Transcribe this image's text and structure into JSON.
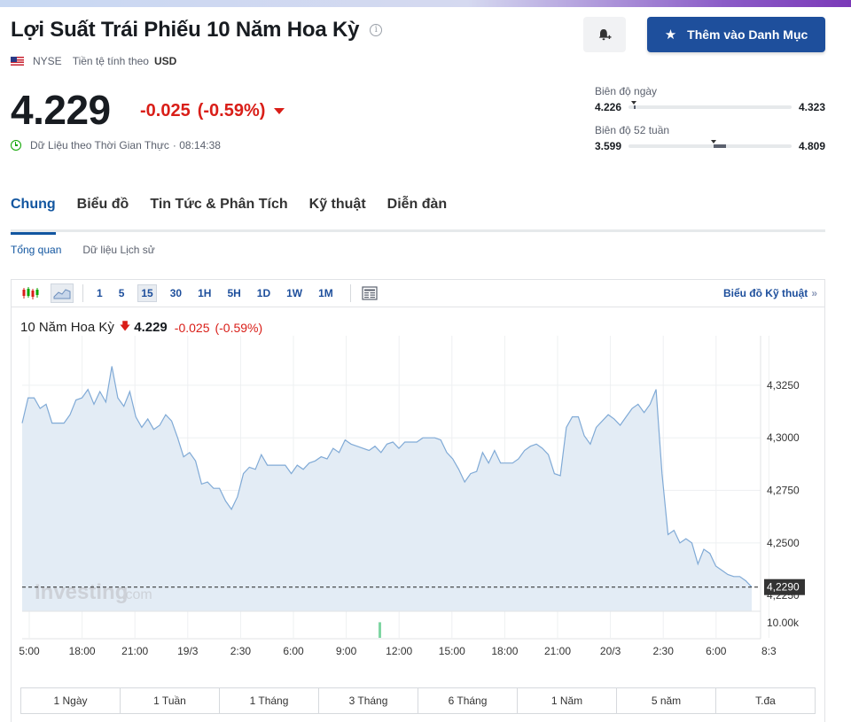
{
  "header": {
    "title": "Lợi Suất Trái Phiếu 10 Năm Hoa Kỳ",
    "exchange": "NYSE",
    "currency_label": "Tiền tệ tính theo",
    "currency": "USD",
    "watchlist_button": "Thêm vào Danh Mục"
  },
  "quote": {
    "price": "4.229",
    "change": "-0.025",
    "change_pct": "(-0.59%)",
    "realtime_label": "Dữ Liệu theo Thời Gian Thực",
    "time": "· 08:14:38"
  },
  "ranges": {
    "day": {
      "label": "Biên độ ngày",
      "low": "4.226",
      "high": "4.323",
      "current": 0.03
    },
    "week52": {
      "label": "Biên độ 52 tuần",
      "low": "3.599",
      "high": "4.809",
      "current": 0.52,
      "band": [
        0.52,
        0.6
      ]
    }
  },
  "tabs": [
    "Chung",
    "Biểu đồ",
    "Tin Tức & Phân Tích",
    "Kỹ thuật",
    "Diễn đàn"
  ],
  "subtabs": [
    "Tổng quan",
    "Dữ liệu Lịch sử"
  ],
  "toolbar": {
    "intervals": [
      "1",
      "5",
      "15",
      "30",
      "1H",
      "5H",
      "1D",
      "1W",
      "1M"
    ],
    "active_interval": "15",
    "tech_link": "Biểu đồ Kỹ thuật",
    "tech_chevron": "»"
  },
  "chart_legend": {
    "symbol": "10 Năm Hoa Kỳ",
    "arrow": "🡇",
    "value": "4.229",
    "change": "-0.025",
    "change_pct": "(-0.59%)"
  },
  "watermark": "Investing",
  "watermark_suffix": ".com",
  "chart_data": {
    "type": "area",
    "title": "",
    "xlabel": "",
    "ylabel": "",
    "ylim": [
      4.2175,
      4.3435
    ],
    "yticks": [
      "4,3250",
      "4,3000",
      "4,2750",
      "4,2500"
    ],
    "last_value_label": "4,2290",
    "hidden_tick_label": "4,2250",
    "volume_label": "10.00k",
    "xticks": [
      "5:00",
      "18:00",
      "21:00",
      "19/3",
      "2:30",
      "6:00",
      "9:00",
      "12:00",
      "15:00",
      "18:00",
      "21:00",
      "20/3",
      "2:30",
      "6:00",
      "8:3"
    ],
    "series": [
      {
        "values": [
          4.307,
          4.319,
          4.319,
          4.314,
          4.316,
          4.307,
          4.307,
          4.307,
          4.311,
          4.318,
          4.319,
          4.323,
          4.316,
          4.322,
          4.317,
          4.334,
          4.319,
          4.315,
          4.322,
          4.31,
          4.305,
          4.309,
          4.304,
          4.306,
          4.311,
          4.308,
          4.3,
          4.291,
          4.293,
          4.289,
          4.278,
          4.279,
          4.276,
          4.276,
          4.27,
          4.266,
          4.272,
          4.283,
          4.286,
          4.285,
          4.292,
          4.287,
          4.287,
          4.287,
          4.287,
          4.283,
          4.287,
          4.285,
          4.288,
          4.289,
          4.291,
          4.29,
          4.295,
          4.293,
          4.299,
          4.297,
          4.296,
          4.295,
          4.294,
          4.296,
          4.293,
          4.297,
          4.298,
          4.295,
          4.298,
          4.298,
          4.298,
          4.3,
          4.3,
          4.3,
          4.299,
          4.293,
          4.29,
          4.285,
          4.279,
          4.283,
          4.284,
          4.293,
          4.288,
          4.294,
          4.288,
          4.288,
          4.288,
          4.29,
          4.294,
          4.296,
          4.297,
          4.295,
          4.292,
          4.283,
          4.282,
          4.305,
          4.31,
          4.31,
          4.301,
          4.297,
          4.305,
          4.308,
          4.311,
          4.309,
          4.306,
          4.31,
          4.314,
          4.316,
          4.312,
          4.316,
          4.323,
          4.283,
          4.254,
          4.256,
          4.25,
          4.252,
          4.25,
          4.24,
          4.247,
          4.245,
          4.239,
          4.237,
          4.235,
          4.234,
          4.234,
          4.232,
          4.229
        ]
      }
    ],
    "volume_bar": 0.8
  },
  "range_buttons": [
    "1 Ngày",
    "1 Tuần",
    "1 Tháng",
    "3 Tháng",
    "6 Tháng",
    "1 Năm",
    "5 năm",
    "T.đa"
  ]
}
